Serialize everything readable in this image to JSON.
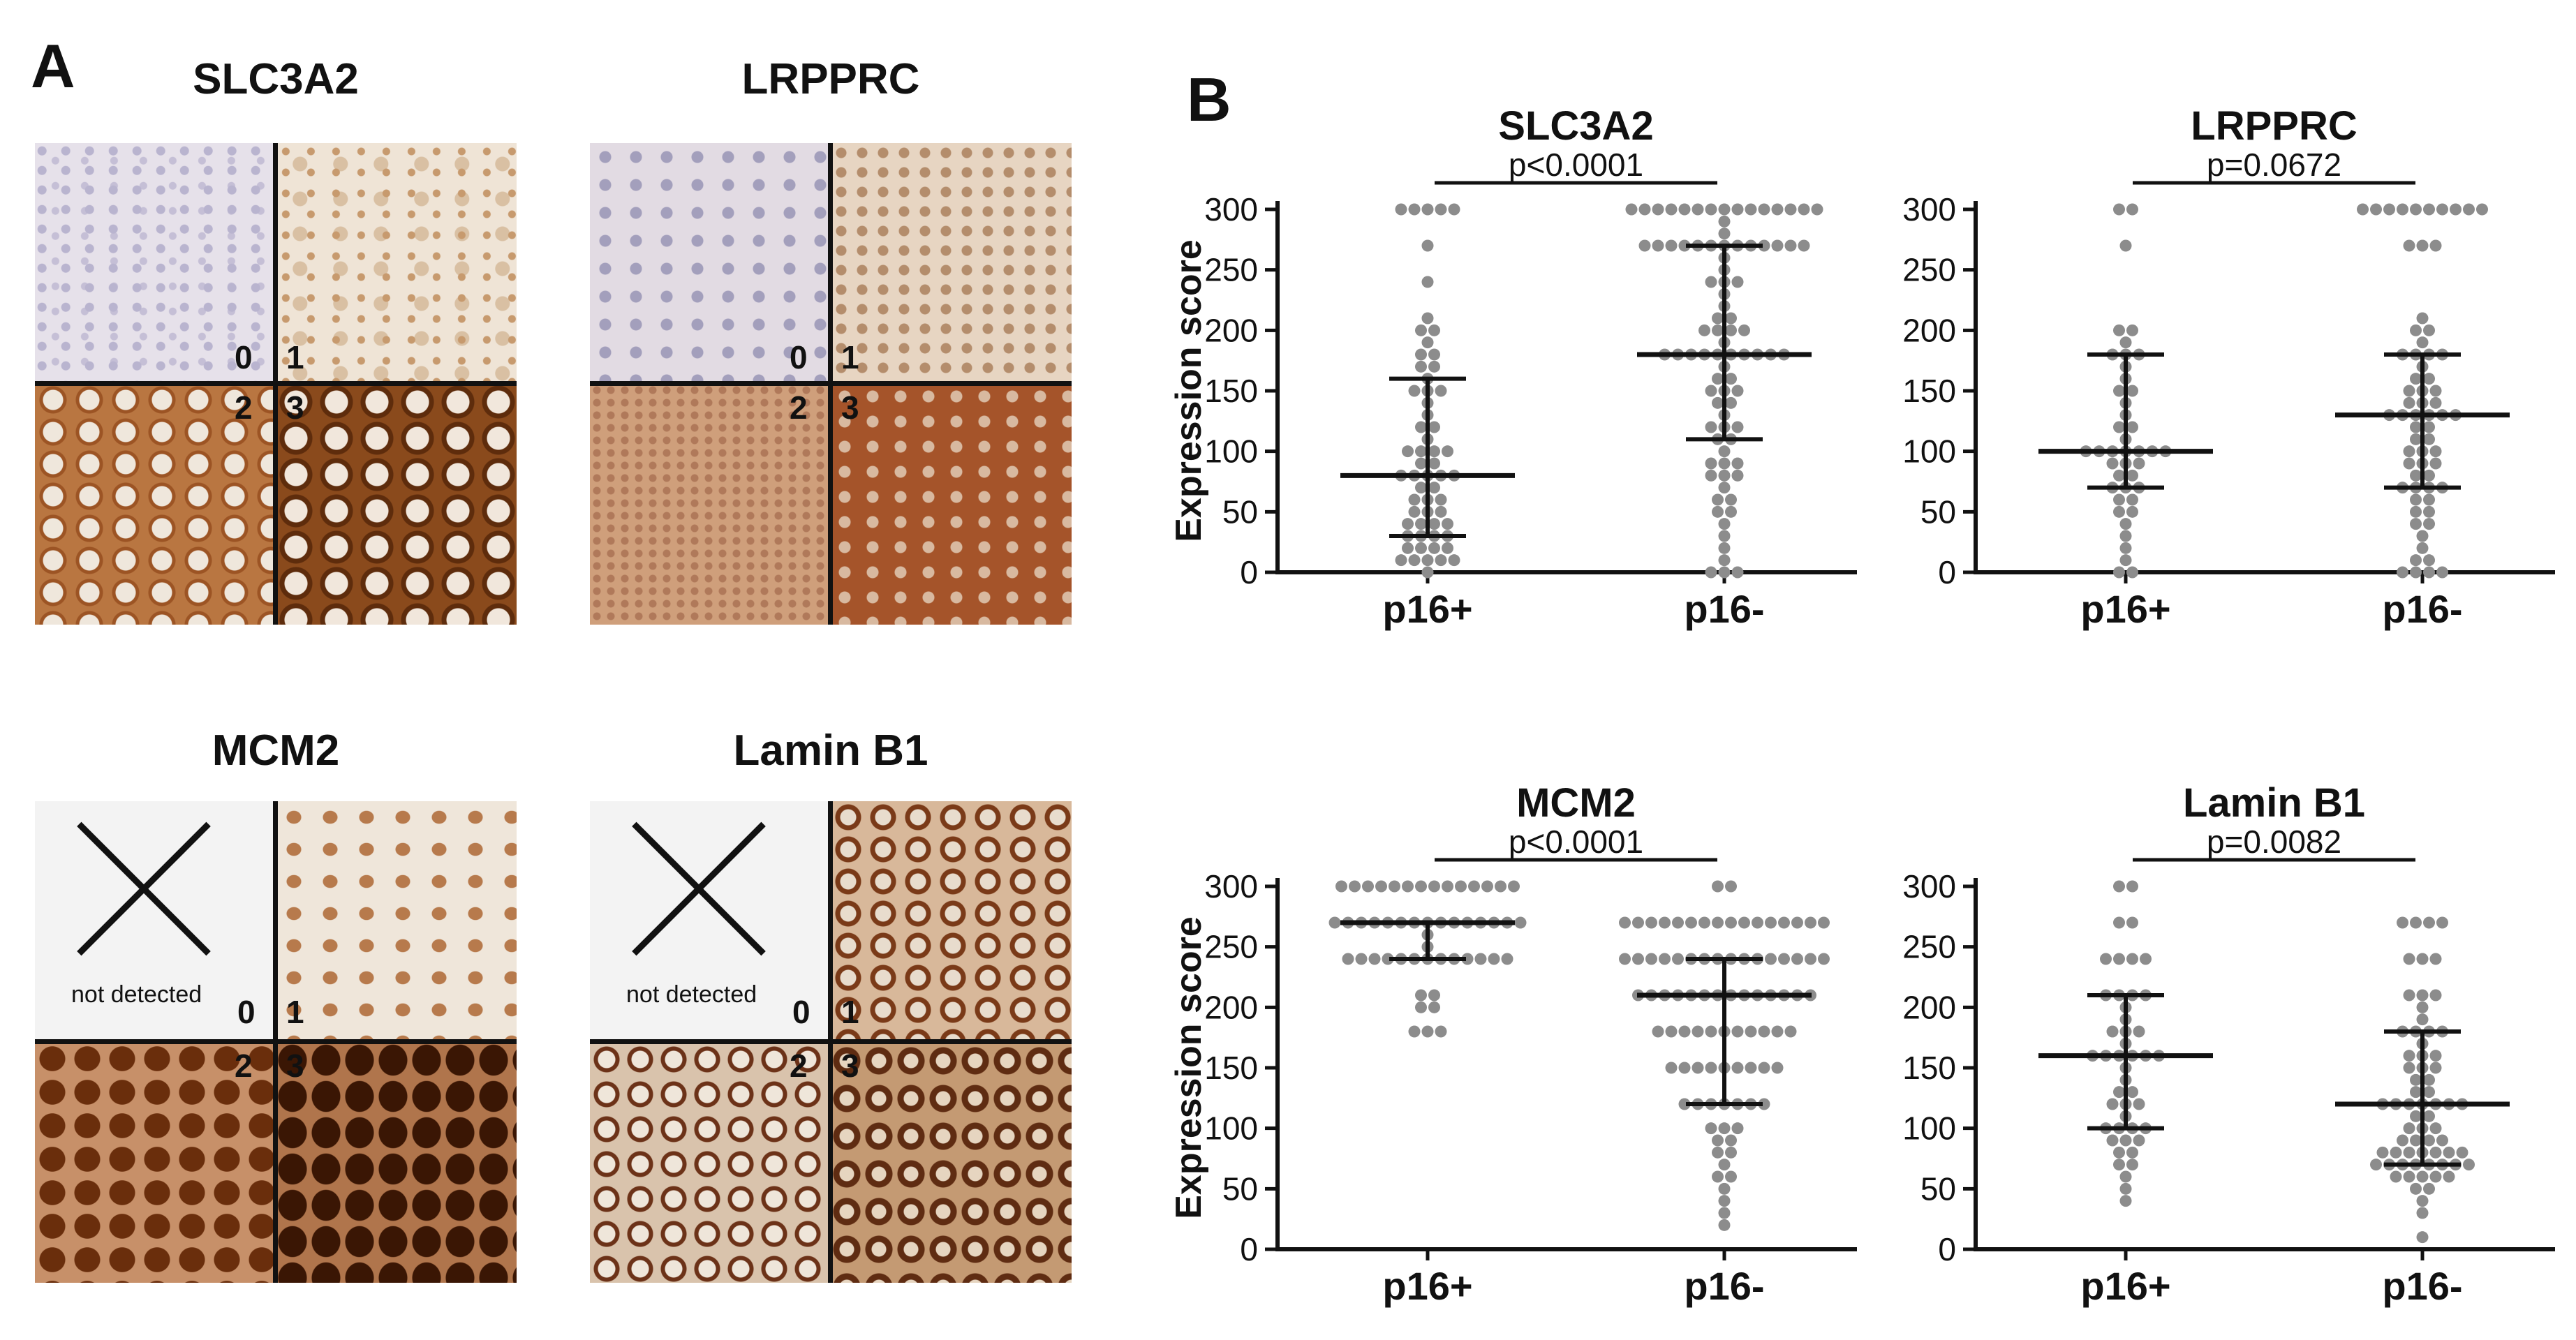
{
  "panel_a": {
    "letter": "A",
    "tiles": [
      {
        "title": "SLC3A2",
        "quadrant_labels": [
          "0",
          "1",
          "2",
          "3"
        ],
        "not_detected": ""
      },
      {
        "title": "LRPPRC",
        "quadrant_labels": [
          "0",
          "1",
          "2",
          "3"
        ],
        "not_detected": ""
      },
      {
        "title": "MCM2",
        "quadrant_labels": [
          "0",
          "1",
          "2",
          "3"
        ],
        "not_detected": "not detected"
      },
      {
        "title": "Lamin B1",
        "quadrant_labels": [
          "0",
          "1",
          "2",
          "3"
        ],
        "not_detected": "not detected"
      }
    ]
  },
  "panel_b": {
    "letter": "B"
  },
  "chart_data": [
    {
      "type": "scatter",
      "title": "SLC3A2",
      "pvalue": "p<0.0001",
      "ylabel": "Expression score",
      "ylim": [
        0,
        300
      ],
      "yticks": [
        0,
        50,
        100,
        150,
        200,
        250,
        300
      ],
      "categories": [
        "p16+",
        "p16-"
      ],
      "groups": [
        {
          "name": "p16+",
          "median": 80,
          "q1": 30,
          "q3": 160,
          "points": [
            300,
            300,
            300,
            300,
            300,
            270,
            240,
            210,
            200,
            200,
            190,
            180,
            180,
            170,
            170,
            160,
            150,
            150,
            150,
            140,
            130,
            120,
            120,
            110,
            100,
            100,
            100,
            100,
            90,
            90,
            80,
            80,
            80,
            80,
            80,
            70,
            70,
            60,
            60,
            60,
            50,
            50,
            50,
            40,
            40,
            40,
            40,
            30,
            30,
            30,
            30,
            20,
            20,
            20,
            20,
            10,
            10,
            10,
            10,
            10,
            0
          ]
        },
        {
          "name": "p16-",
          "median": 180,
          "q1": 110,
          "q3": 270,
          "points": [
            300,
            300,
            300,
            300,
            300,
            300,
            300,
            300,
            300,
            300,
            300,
            300,
            300,
            300,
            300,
            290,
            280,
            270,
            270,
            270,
            270,
            270,
            270,
            270,
            270,
            270,
            270,
            270,
            270,
            270,
            260,
            250,
            240,
            240,
            240,
            230,
            220,
            210,
            210,
            200,
            200,
            200,
            200,
            190,
            180,
            180,
            180,
            180,
            180,
            180,
            180,
            180,
            180,
            180,
            170,
            160,
            160,
            150,
            150,
            150,
            140,
            140,
            130,
            120,
            120,
            120,
            110,
            110,
            100,
            90,
            90,
            90,
            80,
            80,
            80,
            70,
            60,
            60,
            50,
            50,
            40,
            30,
            20,
            10,
            0,
            0,
            0
          ]
        }
      ]
    },
    {
      "type": "scatter",
      "title": "LRPPRC",
      "pvalue": "p=0.0672",
      "ylabel": "",
      "ylim": [
        0,
        300
      ],
      "yticks": [
        0,
        50,
        100,
        150,
        200,
        250,
        300
      ],
      "categories": [
        "p16+",
        "p16-"
      ],
      "groups": [
        {
          "name": "p16+",
          "median": 100,
          "q1": 70,
          "q3": 180,
          "points": [
            300,
            300,
            270,
            200,
            200,
            190,
            180,
            180,
            180,
            170,
            160,
            150,
            150,
            140,
            130,
            120,
            120,
            110,
            100,
            100,
            100,
            100,
            100,
            100,
            100,
            90,
            90,
            90,
            80,
            80,
            70,
            70,
            70,
            60,
            60,
            50,
            50,
            40,
            30,
            20,
            10,
            0,
            0
          ]
        },
        {
          "name": "p16-",
          "median": 130,
          "q1": 70,
          "q3": 180,
          "points": [
            300,
            300,
            300,
            300,
            300,
            300,
            300,
            300,
            300,
            300,
            270,
            270,
            270,
            210,
            200,
            200,
            190,
            180,
            180,
            180,
            180,
            170,
            160,
            160,
            150,
            150,
            150,
            140,
            140,
            140,
            130,
            130,
            130,
            130,
            130,
            130,
            120,
            120,
            110,
            110,
            100,
            100,
            100,
            90,
            90,
            90,
            80,
            80,
            70,
            70,
            70,
            70,
            60,
            60,
            50,
            50,
            40,
            40,
            30,
            20,
            10,
            10,
            0,
            0,
            0,
            0
          ]
        }
      ]
    },
    {
      "type": "scatter",
      "title": "MCM2",
      "pvalue": "p<0.0001",
      "ylabel": "Expression score",
      "ylim": [
        0,
        300
      ],
      "yticks": [
        0,
        50,
        100,
        150,
        200,
        250,
        300
      ],
      "categories": [
        "p16+",
        "p16-"
      ],
      "groups": [
        {
          "name": "p16+",
          "median": 270,
          "q1": 240,
          "q3": 270,
          "points": [
            300,
            300,
            300,
            300,
            300,
            300,
            300,
            300,
            300,
            300,
            300,
            300,
            300,
            300,
            270,
            270,
            270,
            270,
            270,
            270,
            270,
            270,
            270,
            270,
            270,
            270,
            270,
            270,
            270,
            260,
            250,
            240,
            240,
            240,
            240,
            240,
            240,
            240,
            240,
            240,
            240,
            240,
            240,
            240,
            210,
            210,
            200,
            200,
            180,
            180,
            180
          ]
        },
        {
          "name": "p16-",
          "median": 210,
          "q1": 120,
          "q3": 240,
          "points": [
            300,
            300,
            270,
            270,
            270,
            270,
            270,
            270,
            270,
            270,
            270,
            270,
            270,
            270,
            270,
            270,
            270,
            270,
            240,
            240,
            240,
            240,
            240,
            240,
            240,
            240,
            240,
            240,
            240,
            240,
            240,
            240,
            240,
            240,
            210,
            210,
            210,
            210,
            210,
            210,
            210,
            210,
            210,
            210,
            210,
            210,
            210,
            210,
            180,
            180,
            180,
            180,
            180,
            180,
            180,
            180,
            180,
            180,
            180,
            150,
            150,
            150,
            150,
            150,
            150,
            150,
            150,
            150,
            120,
            120,
            120,
            120,
            120,
            120,
            120,
            100,
            100,
            100,
            90,
            90,
            80,
            80,
            70,
            60,
            60,
            50,
            40,
            30,
            20
          ]
        }
      ]
    },
    {
      "type": "scatter",
      "title": "Lamin B1",
      "pvalue": "p=0.0082",
      "ylabel": "",
      "ylim": [
        0,
        300
      ],
      "yticks": [
        0,
        50,
        100,
        150,
        200,
        250,
        300
      ],
      "categories": [
        "p16+",
        "p16-"
      ],
      "groups": [
        {
          "name": "p16+",
          "median": 160,
          "q1": 100,
          "q3": 210,
          "points": [
            300,
            300,
            270,
            270,
            240,
            240,
            240,
            240,
            210,
            210,
            210,
            210,
            200,
            190,
            180,
            180,
            180,
            170,
            160,
            160,
            160,
            160,
            160,
            160,
            150,
            140,
            130,
            130,
            120,
            120,
            120,
            110,
            100,
            100,
            100,
            100,
            90,
            90,
            90,
            80,
            80,
            70,
            70,
            60,
            50,
            40
          ]
        },
        {
          "name": "p16-",
          "median": 120,
          "q1": 70,
          "q3": 180,
          "points": [
            270,
            270,
            270,
            270,
            240,
            240,
            240,
            210,
            210,
            210,
            200,
            190,
            180,
            180,
            180,
            180,
            170,
            160,
            160,
            160,
            150,
            150,
            150,
            140,
            140,
            130,
            130,
            120,
            120,
            120,
            120,
            120,
            120,
            120,
            110,
            110,
            100,
            100,
            100,
            90,
            90,
            90,
            90,
            80,
            80,
            80,
            80,
            80,
            80,
            80,
            70,
            70,
            70,
            70,
            70,
            70,
            70,
            70,
            60,
            60,
            60,
            60,
            60,
            50,
            50,
            40,
            30,
            10
          ]
        }
      ]
    }
  ]
}
